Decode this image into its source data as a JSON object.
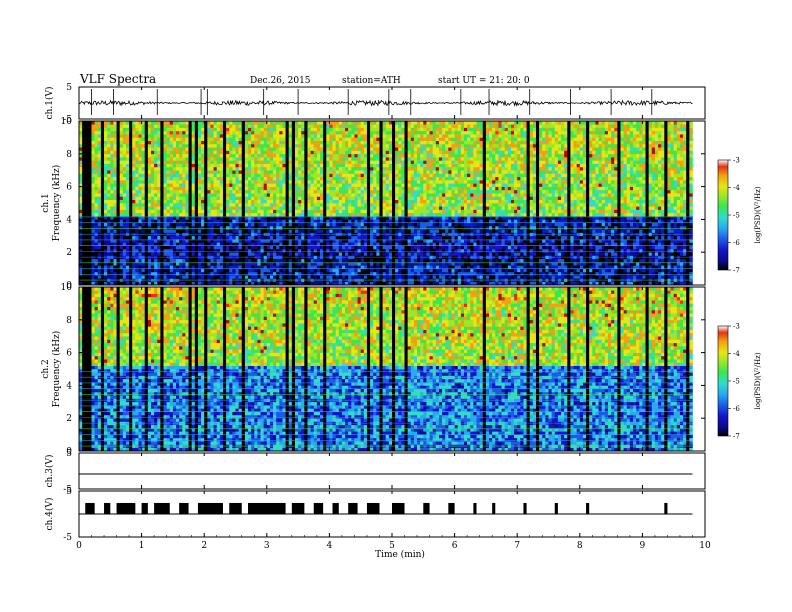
{
  "header": {
    "title": "VLF  Spectra",
    "date": "Dec.26, 2015",
    "station": "station=ATH",
    "start": "start  UT  =    21: 20: 0"
  },
  "colors": {
    "frame": "#000000",
    "colormap": [
      "#000000",
      "#0a0a8c",
      "#1414c8",
      "#1e5ae6",
      "#28aaf0",
      "#32dcc8",
      "#3ce650",
      "#a0e628",
      "#e6e614",
      "#f0a014",
      "#e63214",
      "#b40a0a"
    ]
  },
  "chart_data": [
    {
      "type": "line",
      "panel": "ch1-waveform",
      "ylabel": "ch.1(V)",
      "xlim": [
        0,
        10
      ],
      "ylim": [
        -5,
        5
      ],
      "y_ticks": [
        "5",
        "-5"
      ],
      "baseline": 0,
      "noise_amplitude": 0.8,
      "spike_times_min": [
        0.2,
        0.55,
        1.25,
        1.95,
        2.05,
        2.95,
        3.5,
        4.3,
        4.95,
        5.3,
        6.1,
        6.55,
        7.2,
        7.85,
        8.5,
        9.15
      ]
    },
    {
      "type": "heatmap",
      "panel": "ch1-spectrogram",
      "ylabel": "ch.1\nFrequency  (kHz)",
      "xlim": [
        0,
        10
      ],
      "ylim": [
        0,
        10
      ],
      "y_ticks": [
        "0",
        "2",
        "4",
        "6",
        "8",
        "10"
      ],
      "data_extent_min": 9.8,
      "colorbar": {
        "label": "log(PSD)(V²/Hz)",
        "range": [
          -7,
          -3
        ],
        "ticks": [
          "-3",
          "-4",
          "-5",
          "-6",
          "-7"
        ]
      },
      "description_levels": {
        "low_band_khz": [
          0,
          4.2
        ],
        "low_band_logpsd": -6.3,
        "high_band_logpsd": -4.6,
        "transient_times_min": [
          0.05,
          0.12,
          0.35,
          0.6,
          0.8,
          1.05,
          1.3,
          1.75,
          1.85,
          2.0,
          2.3,
          2.6,
          3.3,
          3.4,
          3.6,
          3.9,
          4.6,
          4.8,
          5.0,
          5.2,
          6.45,
          7.15,
          7.3,
          7.8,
          8.1,
          8.6,
          9.05,
          9.35,
          9.7
        ]
      }
    },
    {
      "type": "heatmap",
      "panel": "ch2-spectrogram",
      "ylabel": "ch.2\nFrequency  (kHz)",
      "xlim": [
        0,
        10
      ],
      "ylim": [
        0,
        10
      ],
      "y_ticks": [
        "0",
        "2",
        "4",
        "6",
        "8",
        "10"
      ],
      "data_extent_min": 9.8,
      "colorbar": {
        "label": "log(PSD)(V²/Hz)",
        "range": [
          -7,
          -3
        ],
        "ticks": [
          "-3",
          "-4",
          "-5",
          "-6",
          "-7"
        ]
      },
      "description_levels": {
        "low_band_khz": [
          0,
          5.2
        ],
        "low_band_logpsd": -5.7,
        "high_band_logpsd": -4.5,
        "transient_times_min": [
          0.05,
          0.12,
          0.35,
          0.6,
          0.8,
          1.05,
          1.3,
          1.75,
          1.85,
          2.0,
          2.3,
          2.6,
          3.3,
          3.4,
          3.6,
          3.9,
          4.6,
          4.8,
          5.0,
          5.2,
          6.45,
          7.15,
          7.3,
          7.8,
          8.1,
          8.6,
          9.05,
          9.35,
          9.7
        ]
      }
    },
    {
      "type": "line",
      "panel": "ch3-signal",
      "ylabel": "ch.3(V)",
      "xlim": [
        0,
        10
      ],
      "ylim": [
        -5,
        5
      ],
      "y_ticks": [
        "5",
        "-5"
      ],
      "baseline": 0
    },
    {
      "type": "line",
      "panel": "ch4-signal",
      "ylabel": "ch.4(V)",
      "xlim": [
        0,
        10
      ],
      "ylim": [
        -5,
        5
      ],
      "y_ticks": [
        "5",
        "-5"
      ],
      "baseline": 0,
      "pulse_level": 1.2,
      "pulse_intervals_min": [
        [
          0.1,
          0.25
        ],
        [
          0.4,
          0.5
        ],
        [
          0.6,
          0.9
        ],
        [
          1.0,
          1.1
        ],
        [
          1.2,
          1.45
        ],
        [
          1.6,
          1.75
        ],
        [
          1.9,
          2.3
        ],
        [
          2.4,
          2.6
        ],
        [
          2.7,
          3.3
        ],
        [
          3.4,
          3.6
        ],
        [
          3.75,
          3.9
        ],
        [
          4.05,
          4.15
        ],
        [
          4.3,
          4.45
        ],
        [
          4.6,
          4.8
        ],
        [
          5.0,
          5.2
        ],
        [
          5.5,
          5.6
        ],
        [
          5.9,
          6.0
        ],
        [
          6.3,
          6.35
        ],
        [
          6.6,
          6.65
        ],
        [
          7.1,
          7.15
        ],
        [
          7.6,
          7.65
        ],
        [
          8.1,
          8.15
        ],
        [
          9.35,
          9.4
        ]
      ]
    }
  ],
  "xaxis": {
    "label": "Time  (min)",
    "ticks": [
      "0",
      "1",
      "2",
      "3",
      "4",
      "5",
      "6",
      "7",
      "8",
      "9",
      "10"
    ]
  }
}
